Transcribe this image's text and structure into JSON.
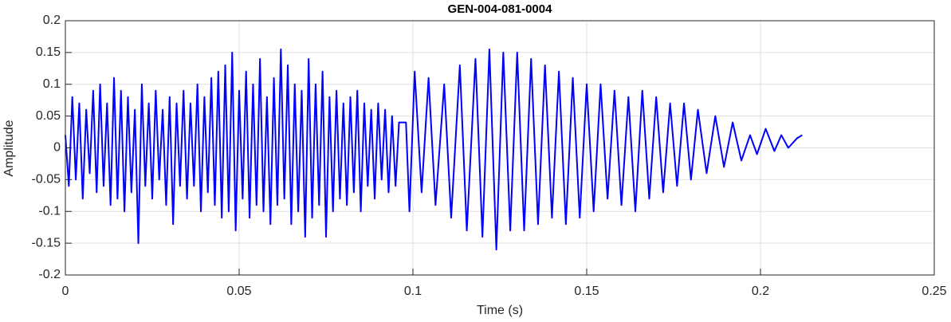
{
  "chart_data": {
    "type": "line",
    "title": "GEN-004-081-0004",
    "xlabel": "Time (s)",
    "ylabel": "Amplitude",
    "xlim": [
      0,
      0.25
    ],
    "xticks": [
      0,
      0.05,
      0.1,
      0.15,
      0.2,
      0.25
    ],
    "ylim": [
      -0.2,
      0.2
    ],
    "yticks": [
      -0.2,
      -0.15,
      -0.1,
      -0.05,
      0,
      0.05,
      0.1,
      0.15,
      0.2
    ],
    "grid": true,
    "series": [
      {
        "color": "#0000ff",
        "x": [
          0,
          0.001,
          0.002,
          0.003,
          0.004,
          0.005,
          0.006,
          0.007,
          0.008,
          0.009,
          0.01,
          0.011,
          0.012,
          0.013,
          0.014,
          0.015,
          0.016,
          0.017,
          0.018,
          0.019,
          0.02,
          0.021,
          0.022,
          0.023,
          0.024,
          0.025,
          0.026,
          0.027,
          0.028,
          0.029,
          0.03,
          0.031,
          0.032,
          0.033,
          0.034,
          0.035,
          0.036,
          0.037,
          0.038,
          0.039,
          0.04,
          0.041,
          0.042,
          0.043,
          0.044,
          0.045,
          0.046,
          0.047,
          0.048,
          0.049,
          0.05,
          0.051,
          0.052,
          0.053,
          0.054,
          0.055,
          0.056,
          0.057,
          0.058,
          0.059,
          0.06,
          0.061,
          0.062,
          0.063,
          0.064,
          0.065,
          0.066,
          0.067,
          0.068,
          0.069,
          0.07,
          0.071,
          0.072,
          0.073,
          0.074,
          0.075,
          0.076,
          0.077,
          0.078,
          0.079,
          0.08,
          0.081,
          0.082,
          0.083,
          0.084,
          0.085,
          0.086,
          0.087,
          0.088,
          0.089,
          0.09,
          0.091,
          0.092,
          0.093,
          0.094,
          0.095,
          0.096,
          0.098,
          0.099,
          0.1005,
          0.1025,
          0.1045,
          0.1065,
          0.109,
          0.111,
          0.1135,
          0.1155,
          0.118,
          0.12,
          0.122,
          0.124,
          0.126,
          0.128,
          0.13,
          0.132,
          0.134,
          0.136,
          0.138,
          0.14,
          0.142,
          0.144,
          0.146,
          0.148,
          0.15,
          0.152,
          0.154,
          0.156,
          0.158,
          0.16,
          0.162,
          0.164,
          0.166,
          0.168,
          0.17,
          0.172,
          0.174,
          0.176,
          0.178,
          0.18,
          0.182,
          0.1845,
          0.187,
          0.1895,
          0.192,
          0.1945,
          0.197,
          0.199,
          0.2015,
          0.204,
          0.206,
          0.208,
          0.2105,
          0.212
        ],
        "values": [
          0.02,
          -0.06,
          0.08,
          -0.05,
          0.07,
          -0.08,
          0.06,
          -0.04,
          0.09,
          -0.07,
          0.1,
          -0.06,
          0.07,
          -0.09,
          0.11,
          -0.08,
          0.09,
          -0.1,
          0.08,
          -0.07,
          0.06,
          -0.15,
          0.1,
          -0.06,
          0.07,
          -0.08,
          0.09,
          -0.05,
          0.06,
          -0.09,
          0.08,
          -0.12,
          0.07,
          -0.06,
          0.09,
          -0.08,
          0.07,
          -0.06,
          0.1,
          -0.1,
          0.08,
          -0.07,
          0.11,
          -0.09,
          0.12,
          -0.11,
          0.13,
          -0.1,
          0.15,
          -0.13,
          0.09,
          -0.08,
          0.12,
          -0.11,
          0.1,
          -0.09,
          0.14,
          -0.1,
          0.08,
          -0.12,
          0.11,
          -0.09,
          0.155,
          -0.08,
          0.13,
          -0.12,
          0.1,
          -0.1,
          0.09,
          -0.14,
          0.14,
          -0.11,
          0.1,
          -0.09,
          0.12,
          -0.14,
          0.08,
          -0.1,
          0.09,
          -0.08,
          0.07,
          -0.09,
          0.08,
          -0.07,
          0.09,
          -0.1,
          0.07,
          -0.06,
          0.06,
          -0.08,
          0.07,
          -0.05,
          0.06,
          -0.07,
          0.05,
          -0.06,
          0.04,
          0.04,
          -0.1,
          0.12,
          -0.07,
          0.11,
          -0.09,
          0.1,
          -0.11,
          0.13,
          -0.13,
          0.14,
          -0.14,
          0.155,
          -0.16,
          0.15,
          -0.13,
          0.15,
          -0.13,
          0.14,
          -0.12,
          0.13,
          -0.11,
          0.12,
          -0.12,
          0.11,
          -0.11,
          0.1,
          -0.1,
          0.1,
          -0.08,
          0.09,
          -0.09,
          0.08,
          -0.1,
          0.09,
          -0.08,
          0.08,
          -0.07,
          0.07,
          -0.06,
          0.07,
          -0.05,
          0.06,
          -0.04,
          0.05,
          -0.03,
          0.04,
          -0.02,
          0.02,
          -0.01,
          0.03,
          -0.005,
          0.02,
          0,
          0.015,
          0.02
        ]
      }
    ]
  }
}
